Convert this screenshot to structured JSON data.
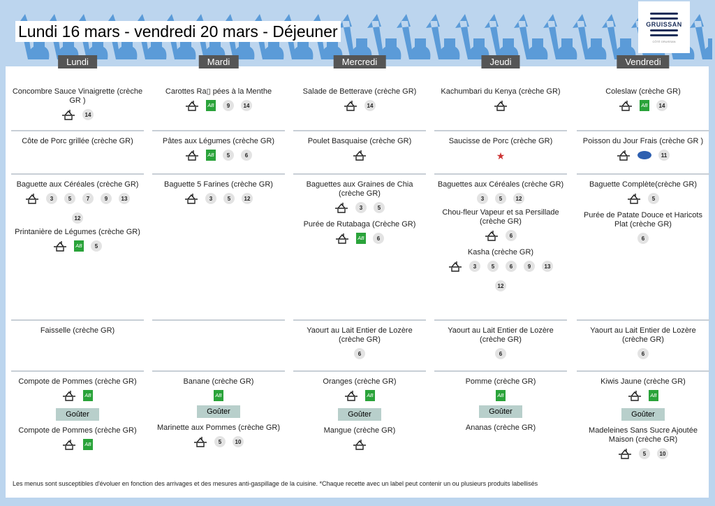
{
  "title": "Lundi 16 mars - vendredi 20 mars  - Déjeuner",
  "logo": {
    "name": "GRUISSAN",
    "tagline": "CÔTÉ GRUISSAN"
  },
  "footer": "Les menus sont susceptibles d'évoluer en fonction des arrivages et des mesures anti-gaspillage de la cuisine. *Chaque recette avec un label peut contenir un ou plusieurs produits labellisés",
  "goûter_label": "Goûter",
  "colors": {
    "header_bg": "#bcd5ee",
    "deco": "#5b9bd8",
    "day_bg": "#555555",
    "bio": "#2aa33a",
    "gouter_bg": "#b8cfcb"
  },
  "days": [
    {
      "label": "Lundi",
      "rows": [
        [
          {
            "name": "Concombre Sauce Vinaigrette  (crèche GR )",
            "icons": [
              "house"
            ],
            "allergens": [
              "14"
            ]
          }
        ],
        [
          {
            "name": "Côte de Porc grillée (crèche GR)",
            "icons": [],
            "allergens": []
          }
        ],
        [
          {
            "name": "Baguette aux Céréales (crèche GR)",
            "icons": [
              "house"
            ],
            "allergens": [
              "3",
              "5",
              "7",
              "9",
              "13",
              "12"
            ]
          },
          {
            "name": "Printanière de Légumes (crèche GR)",
            "icons": [
              "house",
              "ab"
            ],
            "allergens": [
              "5"
            ]
          }
        ],
        [
          {
            "name": "Faisselle (crèche GR)",
            "icons": [],
            "allergens": []
          }
        ],
        [
          {
            "name": "Compote de Pommes (crèche GR)",
            "icons": [
              "house",
              "ab"
            ],
            "allergens": []
          },
          {
            "gouter": true
          },
          {
            "name": "Compote de Pommes (crèche GR)",
            "icons": [
              "house",
              "ab"
            ],
            "allergens": []
          }
        ]
      ]
    },
    {
      "label": "Mardi",
      "rows": [
        [
          {
            "name": "Carottes Ra▯ pées à la Menthe",
            "icons": [
              "house",
              "ab"
            ],
            "allergens": [
              "9",
              "14"
            ]
          }
        ],
        [
          {
            "name": "Pâtes aux Légumes (crèche GR)",
            "icons": [
              "house",
              "ab"
            ],
            "allergens": [
              "5",
              "6"
            ]
          }
        ],
        [
          {
            "name": "Baguette 5 Farines (crèche GR)",
            "icons": [
              "house"
            ],
            "allergens": [
              "3",
              "5",
              "12"
            ]
          }
        ],
        [],
        [
          {
            "name": "Banane (crèche GR)",
            "icons": [
              "ab"
            ],
            "allergens": []
          },
          {
            "gouter": true
          },
          {
            "name": "Marinette aux Pommes (crèche GR)",
            "icons": [
              "house"
            ],
            "allergens": [
              "5",
              "10"
            ]
          }
        ]
      ]
    },
    {
      "label": "Mercredi",
      "rows": [
        [
          {
            "name": "Salade de Betterave (crèche GR)",
            "icons": [
              "house"
            ],
            "allergens": [
              "14"
            ]
          }
        ],
        [
          {
            "name": "Poulet Basquaise (crèche GR)",
            "icons": [
              "house"
            ],
            "allergens": []
          }
        ],
        [
          {
            "name": "Baguettes aux Graines de Chia (crèche GR)",
            "icons": [
              "house"
            ],
            "allergens": [
              "3",
              "5"
            ]
          },
          {
            "name": "Purée de Rutabaga (Crèche GR)",
            "icons": [
              "house",
              "ab"
            ],
            "allergens": [
              "6"
            ]
          }
        ],
        [
          {
            "name": "Yaourt au Lait Entier de Lozère (crèche GR)",
            "icons": [],
            "allergens": [
              "6"
            ]
          }
        ],
        [
          {
            "name": "Oranges (crèche GR)",
            "icons": [
              "house",
              "ab"
            ],
            "allergens": []
          },
          {
            "gouter": true
          },
          {
            "name": "Mangue  (crèche GR)",
            "icons": [
              "house"
            ],
            "allergens": []
          }
        ]
      ]
    },
    {
      "label": "Jeudi",
      "rows": [
        [
          {
            "name": "Kachumbari du Kenya (crèche GR)",
            "icons": [
              "house"
            ],
            "allergens": []
          }
        ],
        [
          {
            "name": "Saucisse de Porc (crèche GR)",
            "icons": [
              "porc-francais"
            ],
            "allergens": []
          }
        ],
        [
          {
            "name": "Baguettes aux Céréales (crèche GR)",
            "icons": [],
            "allergens": [
              "3",
              "5",
              "12"
            ]
          },
          {
            "name": "Chou-fleur Vapeur et sa Persillade (crèche GR)",
            "icons": [
              "house"
            ],
            "allergens": [
              "6"
            ]
          },
          {
            "name": "Kasha (crèche GR)",
            "icons": [
              "house"
            ],
            "allergens": [
              "3",
              "5",
              "6",
              "9",
              "13",
              "12"
            ]
          }
        ],
        [
          {
            "name": "Yaourt au Lait Entier de Lozère (crèche GR)",
            "icons": [],
            "allergens": [
              "6"
            ]
          }
        ],
        [
          {
            "name": "Pomme (crèche GR)",
            "icons": [
              "ab"
            ],
            "allergens": []
          },
          {
            "gouter": true
          },
          {
            "name": "Ananas (crèche GR)",
            "icons": [],
            "allergens": []
          }
        ]
      ]
    },
    {
      "label": "Vendredi",
      "rows": [
        [
          {
            "name": "Coleslaw (crèche GR)",
            "icons": [
              "house",
              "ab"
            ],
            "allergens": [
              "14"
            ]
          }
        ],
        [
          {
            "name": "Poisson du Jour Frais (crèche GR )",
            "icons": [
              "house",
              "msc"
            ],
            "allergens": [
              "11"
            ]
          }
        ],
        [
          {
            "name": "Baguette Complète(crèche GR)",
            "icons": [
              "house"
            ],
            "allergens": [
              "5"
            ]
          },
          {
            "name": "Purée de Patate Douce et Haricots Plat (crèche GR)",
            "icons": [],
            "allergens": [
              "6"
            ]
          }
        ],
        [
          {
            "name": "Yaourt au Lait Entier de Lozère (crèche GR)",
            "icons": [],
            "allergens": [
              "6"
            ]
          }
        ],
        [
          {
            "name": "Kiwis Jaune (crèche GR)",
            "icons": [
              "house",
              "ab"
            ],
            "allergens": []
          },
          {
            "gouter": true
          },
          {
            "name": "Madeleines Sans Sucre Ajoutée Maison (crèche GR)",
            "icons": [
              "house"
            ],
            "allergens": [
              "5",
              "10"
            ]
          }
        ]
      ]
    }
  ]
}
